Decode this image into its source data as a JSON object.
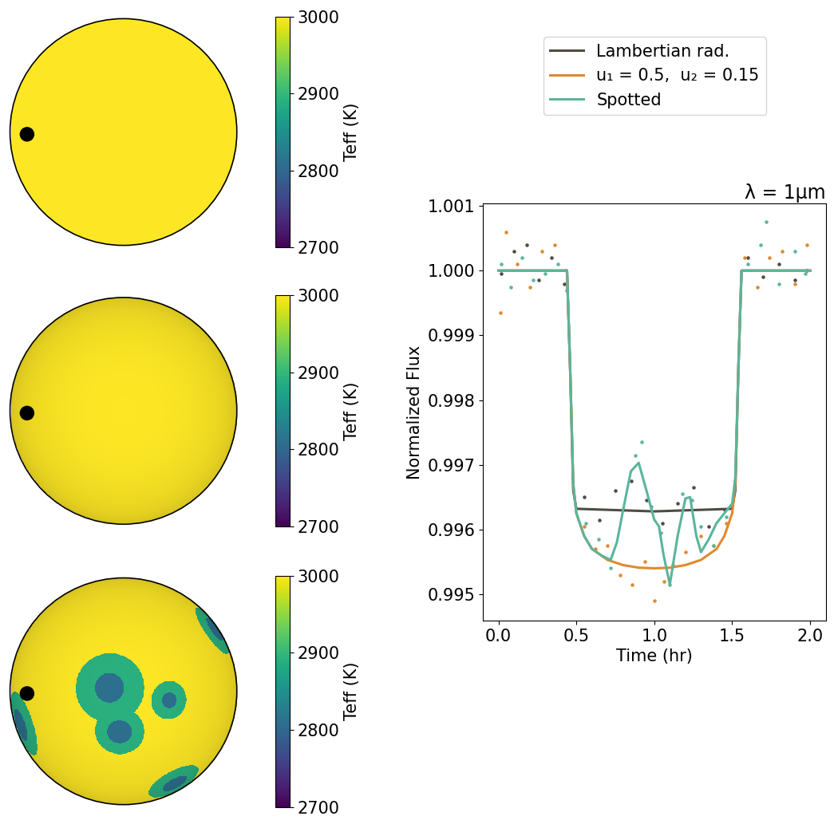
{
  "chart_data": [
    {
      "type": "heatmap",
      "t_star": 3000,
      "limb_darkening": [
        0.0,
        0.0
      ],
      "spots": [],
      "planet": {
        "x": -0.85,
        "y": -0.02,
        "radius": 0.06
      },
      "colorbar": {
        "label": "Teff (K)",
        "range": [
          2700,
          3000
        ],
        "ticks": [
          2700,
          2800,
          2900,
          3000
        ]
      },
      "tick_labels": false
    },
    {
      "type": "heatmap",
      "t_star": 3000,
      "limb_darkening": [
        0.5,
        0.15
      ],
      "spots": [],
      "planet": {
        "x": -0.85,
        "y": -0.02,
        "radius": 0.06
      },
      "colorbar": {
        "label": "Teff (K)",
        "range": [
          2700,
          3000
        ],
        "ticks": [
          2700,
          2800,
          2900,
          3000
        ]
      },
      "tick_labels": false
    },
    {
      "type": "heatmap",
      "t_star": 3000,
      "limb_darkening": [
        0.5,
        0.15
      ],
      "spots": [
        {
          "x": -0.13,
          "y": 0.03,
          "umbra_radius": 0.13,
          "penumbra_radius": 0.31,
          "t_umbra": 2810,
          "t_penumbra": 2890
        },
        {
          "x": -0.04,
          "y": -0.36,
          "umbra_radius": 0.11,
          "penumbra_radius": 0.22,
          "t_umbra": 2810,
          "t_penumbra": 2890
        },
        {
          "x": 0.4,
          "y": -0.08,
          "umbra_radius": 0.07,
          "penumbra_radius": 0.17,
          "t_umbra": 2810,
          "t_penumbra": 2890
        },
        {
          "x": 0.45,
          "y": -0.82,
          "umbra_radius": 0.12,
          "penumbra_radius": 0.25,
          "t_umbra": 2810,
          "t_penumbra": 2890
        },
        {
          "x": -0.92,
          "y": -0.3,
          "umbra_radius": 0.15,
          "penumbra_radius": 0.3,
          "t_umbra": 2810,
          "t_penumbra": 2890
        },
        {
          "x": 0.8,
          "y": 0.55,
          "umbra_radius": 0.12,
          "penumbra_radius": 0.25,
          "t_umbra": 2810,
          "t_penumbra": 2890
        }
      ],
      "planet": {
        "x": -0.85,
        "y": -0.02,
        "radius": 0.06
      },
      "colorbar": {
        "label": "Teff (K)",
        "range": [
          2700,
          3000
        ],
        "ticks": [
          2700,
          2800,
          2900,
          3000
        ]
      },
      "tick_labels": false
    },
    {
      "type": "line",
      "title": "λ = 1μm",
      "x_label": "Time (hr)",
      "y_label": "Normalized Flux",
      "xlim": [
        -0.1,
        2.1
      ],
      "xticks": [
        0.0,
        0.5,
        1.0,
        1.5,
        2.0
      ],
      "ylim": [
        0.99459,
        1.00104
      ],
      "yticks": [
        0.995,
        0.996,
        0.997,
        0.998,
        0.999,
        {
          "value": 1.0,
          "label": "1.000"
        },
        1.001
      ],
      "legend": "upper center",
      "series": [
        {
          "name": "Lambertian rad.",
          "color": "#4f4b43",
          "x": [
            0.0,
            0.44,
            0.46,
            0.48,
            0.5,
            1.0,
            1.5,
            1.52,
            1.54,
            1.56,
            2.0
          ],
          "values": [
            1.0,
            1.0,
            0.9985,
            0.9966,
            0.99632,
            0.99628,
            0.99632,
            0.9966,
            0.9985,
            1.0,
            1.0
          ],
          "points": {
            "x": [
              0.02,
              0.1,
              0.18,
              0.26,
              0.34,
              0.42,
              0.55,
              0.65,
              0.75,
              0.85,
              0.95,
              1.05,
              1.15,
              1.25,
              1.35,
              1.45,
              1.6,
              1.7,
              1.8,
              1.9,
              1.98
            ],
            "y": [
              0.99995,
              1.0003,
              1.0004,
              0.99985,
              1.0002,
              0.9998,
              0.9965,
              0.99615,
              0.9966,
              0.99675,
              0.99645,
              0.9961,
              0.9964,
              0.99665,
              0.99605,
              0.9963,
              1.0002,
              0.9999,
              1.0001,
              0.99985,
              1.0
            ]
          }
        },
        {
          "name": "u₁ = 0.5,  u₂ = 0.15",
          "color": "#e0892f",
          "x": [
            0.0,
            0.44,
            0.46,
            0.48,
            0.5,
            0.55,
            0.6,
            0.7,
            0.8,
            0.9,
            1.0,
            1.1,
            1.2,
            1.3,
            1.4,
            1.45,
            1.5,
            1.52,
            1.54,
            1.56,
            2.0
          ],
          "values": [
            1.0,
            1.0,
            0.9985,
            0.9967,
            0.99625,
            0.9959,
            0.9957,
            0.99553,
            0.99545,
            0.99541,
            0.9954,
            0.99541,
            0.99545,
            0.99553,
            0.9957,
            0.9959,
            0.99625,
            0.9967,
            0.9985,
            1.0,
            1.0
          ],
          "points": {
            "x": [
              0.01,
              0.05,
              0.12,
              0.2,
              0.28,
              0.36,
              0.43,
              0.55,
              0.62,
              0.7,
              0.78,
              0.86,
              0.94,
              1.0,
              1.06,
              1.12,
              1.2,
              1.3,
              1.38,
              1.46,
              1.58,
              1.66,
              1.74,
              1.82,
              1.9,
              1.98
            ],
            "y": [
              0.99935,
              1.0006,
              1.0001,
              0.99975,
              1.0003,
              1.0004,
              1.0,
              0.99605,
              0.9957,
              0.99575,
              0.9953,
              0.99515,
              0.9955,
              0.9949,
              0.9952,
              0.99545,
              0.99565,
              0.9959,
              0.99575,
              0.9961,
              1.0002,
              0.99975,
              1.0002,
              1.0003,
              0.9998,
              1.0004
            ]
          }
        },
        {
          "name": "Spotted",
          "color": "#5ab59c",
          "x": [
            0.0,
            0.44,
            0.46,
            0.48,
            0.5,
            0.55,
            0.6,
            0.66,
            0.72,
            0.76,
            0.8,
            0.85,
            0.9,
            0.95,
            1.0,
            1.03,
            1.06,
            1.1,
            1.15,
            1.2,
            1.23,
            1.27,
            1.3,
            1.35,
            1.4,
            1.45,
            1.5,
            1.52,
            1.54,
            1.56,
            2.0
          ],
          "values": [
            1.0,
            1.0,
            0.9985,
            0.9967,
            0.99625,
            0.9959,
            0.9957,
            0.9956,
            0.99553,
            0.9958,
            0.9963,
            0.9969,
            0.99703,
            0.9966,
            0.99615,
            0.99605,
            0.9956,
            0.99515,
            0.9959,
            0.99648,
            0.9965,
            0.9959,
            0.99565,
            0.99585,
            0.9961,
            0.99625,
            0.9964,
            0.9968,
            0.9985,
            1.0,
            1.0
          ],
          "points": {
            "x": [
              0.02,
              0.08,
              0.15,
              0.22,
              0.3,
              0.38,
              0.44,
              0.56,
              0.64,
              0.72,
              0.8,
              0.88,
              0.92,
              0.98,
              1.04,
              1.1,
              1.18,
              1.24,
              1.3,
              1.38,
              1.46,
              1.6,
              1.68,
              1.72,
              1.8,
              1.9,
              1.97
            ],
            "y": [
              1.0001,
              0.99975,
              1.0002,
              0.99985,
              0.99995,
              1.0001,
              0.9997,
              0.9961,
              0.99585,
              0.9954,
              0.9963,
              0.99715,
              0.99735,
              0.99635,
              0.99595,
              0.99515,
              0.99655,
              0.99645,
              0.99605,
              0.99575,
              0.9962,
              1.0001,
              1.0004,
              1.00075,
              0.9998,
              1.0003,
              0.99995
            ]
          }
        }
      ]
    }
  ]
}
